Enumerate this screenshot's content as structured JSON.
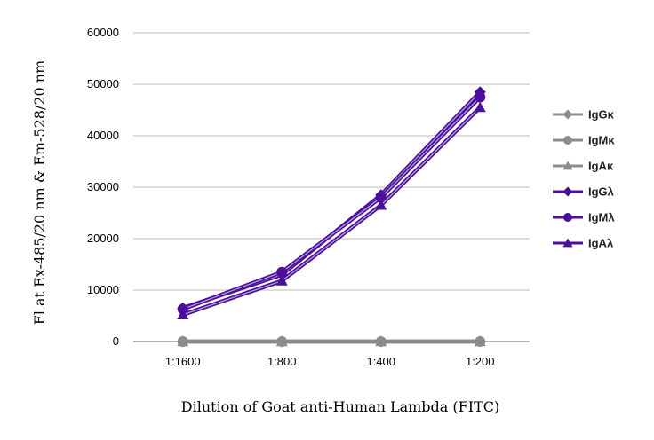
{
  "chart_data": {
    "type": "line",
    "title": "",
    "xlabel": "Dilution of Goat anti-Human Lambda (FITC)",
    "ylabel": "Fl at Ex-485/20 nm & Em-528/20 nm",
    "categories": [
      "1:1600",
      "1:800",
      "1:400",
      "1:200"
    ],
    "ylim": [
      0,
      60000
    ],
    "yticks": [
      0,
      10000,
      20000,
      30000,
      40000,
      50000,
      60000
    ],
    "grid": true,
    "legend_position": "right",
    "series": [
      {
        "name": "IgGκ",
        "values": [
          0,
          0,
          0,
          0
        ],
        "marker": "diamond",
        "color": "#8c8c8c"
      },
      {
        "name": "IgMκ",
        "values": [
          0,
          0,
          0,
          0
        ],
        "marker": "circle",
        "color": "#8c8c8c"
      },
      {
        "name": "IgAκ",
        "values": [
          0,
          0,
          0,
          0
        ],
        "marker": "triangle",
        "color": "#8c8c8c"
      },
      {
        "name": "IgGλ",
        "values": [
          6500,
          13000,
          28500,
          48500
        ],
        "marker": "diamond",
        "color": "#4b0f9a"
      },
      {
        "name": "IgMλ",
        "values": [
          6300,
          13500,
          28000,
          47500
        ],
        "marker": "circle",
        "color": "#4b0f9a"
      },
      {
        "name": "IgAλ",
        "values": [
          5200,
          11800,
          26500,
          45500
        ],
        "marker": "triangle",
        "color": "#4b0f9a"
      }
    ]
  }
}
